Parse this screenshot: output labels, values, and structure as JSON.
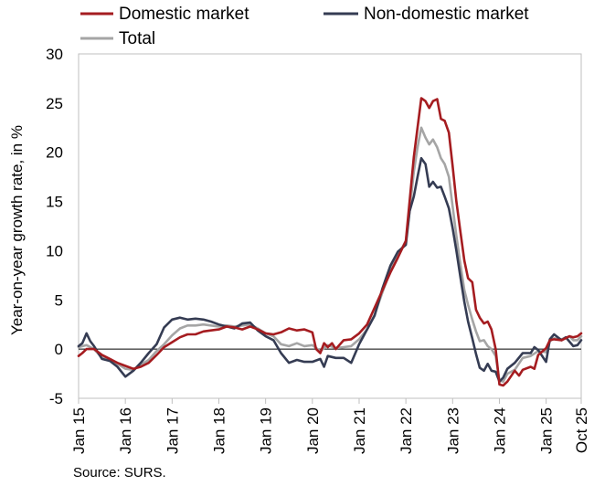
{
  "chart_data": {
    "type": "line",
    "title": "",
    "xlabel": "",
    "ylabel": "Year-on-year growth rate, in %",
    "ylim": [
      -5,
      30
    ],
    "yticks": [
      30,
      25,
      20,
      15,
      10,
      5,
      0,
      -5
    ],
    "xlim": [
      2015.0,
      2025.75
    ],
    "xticks": [
      {
        "label": "Jan 15",
        "x": 2015.0
      },
      {
        "label": "Jan 16",
        "x": 2016.0
      },
      {
        "label": "Jan 17",
        "x": 2017.0
      },
      {
        "label": "Jan 18",
        "x": 2018.0
      },
      {
        "label": "Jan 19",
        "x": 2019.0
      },
      {
        "label": "Jan 20",
        "x": 2020.0
      },
      {
        "label": "Jan 21",
        "x": 2021.0
      },
      {
        "label": "Jan 22",
        "x": 2022.0
      },
      {
        "label": "Jan 23",
        "x": 2023.0
      },
      {
        "label": "Jan 24",
        "x": 2024.0
      },
      {
        "label": "Jan 25",
        "x": 2025.0
      },
      {
        "label": "Oct 25",
        "x": 2025.75
      }
    ],
    "grid": false,
    "legend_position": "top-left",
    "series": [
      {
        "name": "Total",
        "color": "#a5a5a5",
        "points": [
          [
            2015.0,
            0.2
          ],
          [
            2015.17,
            0.4
          ],
          [
            2015.33,
            0.0
          ],
          [
            2015.5,
            -0.9
          ],
          [
            2015.67,
            -1.1
          ],
          [
            2015.83,
            -1.5
          ],
          [
            2016.0,
            -2.0
          ],
          [
            2016.17,
            -2.1
          ],
          [
            2016.33,
            -1.6
          ],
          [
            2016.5,
            -1.1
          ],
          [
            2016.67,
            -0.2
          ],
          [
            2016.83,
            0.5
          ],
          [
            2017.0,
            1.4
          ],
          [
            2017.17,
            2.1
          ],
          [
            2017.33,
            2.4
          ],
          [
            2017.5,
            2.4
          ],
          [
            2017.67,
            2.5
          ],
          [
            2017.83,
            2.4
          ],
          [
            2018.0,
            2.3
          ],
          [
            2018.17,
            2.4
          ],
          [
            2018.33,
            2.3
          ],
          [
            2018.5,
            2.4
          ],
          [
            2018.67,
            2.5
          ],
          [
            2018.83,
            2.1
          ],
          [
            2019.0,
            1.6
          ],
          [
            2019.17,
            1.3
          ],
          [
            2019.33,
            0.5
          ],
          [
            2019.5,
            0.3
          ],
          [
            2019.67,
            0.6
          ],
          [
            2019.83,
            0.3
          ],
          [
            2020.0,
            0.4
          ],
          [
            2020.17,
            -0.2
          ],
          [
            2020.33,
            0.4
          ],
          [
            2020.5,
            0.1
          ],
          [
            2020.67,
            0.2
          ],
          [
            2020.83,
            0.3
          ],
          [
            2021.0,
            1.0
          ],
          [
            2021.17,
            2.0
          ],
          [
            2021.33,
            3.5
          ],
          [
            2021.5,
            5.8
          ],
          [
            2021.67,
            8.0
          ],
          [
            2021.83,
            9.5
          ],
          [
            2022.0,
            11.0
          ],
          [
            2022.08,
            14.0
          ],
          [
            2022.17,
            18.0
          ],
          [
            2022.25,
            20.5
          ],
          [
            2022.33,
            22.5
          ],
          [
            2022.42,
            21.5
          ],
          [
            2022.5,
            20.8
          ],
          [
            2022.58,
            21.3
          ],
          [
            2022.67,
            20.5
          ],
          [
            2022.75,
            19.4
          ],
          [
            2022.83,
            18.8
          ],
          [
            2022.92,
            17.5
          ],
          [
            2023.0,
            14.5
          ],
          [
            2023.08,
            11.5
          ],
          [
            2023.17,
            8.5
          ],
          [
            2023.25,
            6.0
          ],
          [
            2023.33,
            4.5
          ],
          [
            2023.42,
            3.0
          ],
          [
            2023.5,
            1.8
          ],
          [
            2023.58,
            0.8
          ],
          [
            2023.67,
            0.9
          ],
          [
            2023.75,
            0.3
          ],
          [
            2023.83,
            0.0
          ],
          [
            2023.92,
            -0.7
          ],
          [
            2024.0,
            -3.2
          ],
          [
            2024.08,
            -3.3
          ],
          [
            2024.17,
            -2.5
          ],
          [
            2024.33,
            -2.1
          ],
          [
            2024.5,
            -0.9
          ],
          [
            2024.67,
            -0.7
          ],
          [
            2024.83,
            -0.2
          ],
          [
            2025.0,
            -0.3
          ],
          [
            2025.08,
            0.8
          ],
          [
            2025.17,
            1.1
          ],
          [
            2025.33,
            1.0
          ],
          [
            2025.5,
            1.3
          ],
          [
            2025.58,
            0.9
          ],
          [
            2025.67,
            0.9
          ],
          [
            2025.75,
            1.3
          ]
        ]
      },
      {
        "name": "Non-domestic market",
        "color": "#353c53",
        "points": [
          [
            2015.0,
            0.3
          ],
          [
            2015.08,
            0.6
          ],
          [
            2015.17,
            1.6
          ],
          [
            2015.25,
            0.8
          ],
          [
            2015.33,
            0.3
          ],
          [
            2015.5,
            -1.0
          ],
          [
            2015.67,
            -1.2
          ],
          [
            2015.83,
            -1.8
          ],
          [
            2016.0,
            -2.8
          ],
          [
            2016.17,
            -2.2
          ],
          [
            2016.33,
            -1.4
          ],
          [
            2016.5,
            -0.4
          ],
          [
            2016.67,
            0.5
          ],
          [
            2016.83,
            2.2
          ],
          [
            2017.0,
            3.0
          ],
          [
            2017.17,
            3.2
          ],
          [
            2017.33,
            3.0
          ],
          [
            2017.5,
            3.1
          ],
          [
            2017.67,
            3.0
          ],
          [
            2017.83,
            2.8
          ],
          [
            2018.0,
            2.5
          ],
          [
            2018.17,
            2.3
          ],
          [
            2018.33,
            2.1
          ],
          [
            2018.5,
            2.6
          ],
          [
            2018.67,
            2.7
          ],
          [
            2018.83,
            1.9
          ],
          [
            2019.0,
            1.3
          ],
          [
            2019.17,
            0.9
          ],
          [
            2019.33,
            -0.4
          ],
          [
            2019.5,
            -1.4
          ],
          [
            2019.67,
            -1.1
          ],
          [
            2019.83,
            -1.3
          ],
          [
            2020.0,
            -1.3
          ],
          [
            2020.17,
            -1.0
          ],
          [
            2020.25,
            -1.8
          ],
          [
            2020.33,
            -0.7
          ],
          [
            2020.5,
            -0.9
          ],
          [
            2020.67,
            -0.9
          ],
          [
            2020.83,
            -1.4
          ],
          [
            2021.0,
            0.5
          ],
          [
            2021.17,
            2.0
          ],
          [
            2021.33,
            3.4
          ],
          [
            2021.5,
            6.2
          ],
          [
            2021.67,
            8.5
          ],
          [
            2021.83,
            9.9
          ],
          [
            2022.0,
            10.6
          ],
          [
            2022.08,
            14.0
          ],
          [
            2022.17,
            15.5
          ],
          [
            2022.25,
            17.5
          ],
          [
            2022.33,
            19.4
          ],
          [
            2022.42,
            18.8
          ],
          [
            2022.5,
            16.5
          ],
          [
            2022.58,
            17.0
          ],
          [
            2022.67,
            16.4
          ],
          [
            2022.75,
            16.5
          ],
          [
            2022.83,
            15.5
          ],
          [
            2022.92,
            14.3
          ],
          [
            2023.0,
            12.3
          ],
          [
            2023.08,
            10.0
          ],
          [
            2023.17,
            7.2
          ],
          [
            2023.25,
            4.8
          ],
          [
            2023.33,
            2.8
          ],
          [
            2023.42,
            1.1
          ],
          [
            2023.5,
            -0.5
          ],
          [
            2023.58,
            -1.9
          ],
          [
            2023.67,
            -2.2
          ],
          [
            2023.75,
            -1.5
          ],
          [
            2023.83,
            -2.2
          ],
          [
            2023.92,
            -2.3
          ],
          [
            2024.0,
            -3.3
          ],
          [
            2024.08,
            -2.9
          ],
          [
            2024.17,
            -2.0
          ],
          [
            2024.33,
            -1.4
          ],
          [
            2024.5,
            -0.4
          ],
          [
            2024.67,
            -0.4
          ],
          [
            2024.75,
            0.2
          ],
          [
            2024.83,
            -0.1
          ],
          [
            2025.0,
            -1.3
          ],
          [
            2025.08,
            1.0
          ],
          [
            2025.17,
            1.5
          ],
          [
            2025.33,
            0.9
          ],
          [
            2025.42,
            1.2
          ],
          [
            2025.58,
            0.3
          ],
          [
            2025.67,
            0.4
          ],
          [
            2025.75,
            0.9
          ]
        ]
      },
      {
        "name": "Domestic market",
        "color": "#a51c20",
        "points": [
          [
            2015.0,
            -0.7
          ],
          [
            2015.08,
            -0.4
          ],
          [
            2015.17,
            0.0
          ],
          [
            2015.33,
            0.0
          ],
          [
            2015.5,
            -0.6
          ],
          [
            2015.67,
            -1.0
          ],
          [
            2015.83,
            -1.4
          ],
          [
            2016.0,
            -1.7
          ],
          [
            2016.17,
            -2.0
          ],
          [
            2016.33,
            -1.8
          ],
          [
            2016.5,
            -1.4
          ],
          [
            2016.67,
            -0.6
          ],
          [
            2016.83,
            0.2
          ],
          [
            2017.0,
            0.7
          ],
          [
            2017.17,
            1.2
          ],
          [
            2017.33,
            1.5
          ],
          [
            2017.5,
            1.5
          ],
          [
            2017.67,
            1.8
          ],
          [
            2017.83,
            1.9
          ],
          [
            2018.0,
            2.0
          ],
          [
            2018.17,
            2.3
          ],
          [
            2018.33,
            2.2
          ],
          [
            2018.5,
            2.0
          ],
          [
            2018.67,
            2.3
          ],
          [
            2018.83,
            2.0
          ],
          [
            2019.0,
            1.6
          ],
          [
            2019.17,
            1.5
          ],
          [
            2019.33,
            1.7
          ],
          [
            2019.5,
            2.1
          ],
          [
            2019.67,
            1.9
          ],
          [
            2019.83,
            2.0
          ],
          [
            2020.0,
            1.7
          ],
          [
            2020.08,
            0.0
          ],
          [
            2020.17,
            -0.4
          ],
          [
            2020.25,
            0.6
          ],
          [
            2020.33,
            0.2
          ],
          [
            2020.42,
            0.6
          ],
          [
            2020.5,
            0.0
          ],
          [
            2020.67,
            0.9
          ],
          [
            2020.83,
            1.0
          ],
          [
            2021.0,
            1.6
          ],
          [
            2021.17,
            2.5
          ],
          [
            2021.33,
            4.2
          ],
          [
            2021.5,
            6.0
          ],
          [
            2021.67,
            7.8
          ],
          [
            2021.83,
            9.3
          ],
          [
            2022.0,
            11.0
          ],
          [
            2022.08,
            15.0
          ],
          [
            2022.17,
            19.5
          ],
          [
            2022.25,
            22.5
          ],
          [
            2022.33,
            25.5
          ],
          [
            2022.42,
            25.2
          ],
          [
            2022.5,
            24.5
          ],
          [
            2022.58,
            25.2
          ],
          [
            2022.67,
            25.4
          ],
          [
            2022.75,
            23.4
          ],
          [
            2022.83,
            23.2
          ],
          [
            2022.92,
            22.0
          ],
          [
            2023.0,
            18.6
          ],
          [
            2023.08,
            15.0
          ],
          [
            2023.17,
            11.8
          ],
          [
            2023.25,
            9.0
          ],
          [
            2023.33,
            7.2
          ],
          [
            2023.42,
            6.8
          ],
          [
            2023.5,
            4.0
          ],
          [
            2023.58,
            3.2
          ],
          [
            2023.67,
            2.6
          ],
          [
            2023.75,
            2.8
          ],
          [
            2023.83,
            2.0
          ],
          [
            2023.92,
            0.0
          ],
          [
            2024.0,
            -3.6
          ],
          [
            2024.08,
            -3.7
          ],
          [
            2024.17,
            -3.3
          ],
          [
            2024.33,
            -2.2
          ],
          [
            2024.42,
            -2.7
          ],
          [
            2024.5,
            -2.1
          ],
          [
            2024.67,
            -1.8
          ],
          [
            2024.75,
            -2.0
          ],
          [
            2024.83,
            -0.6
          ],
          [
            2025.0,
            0.1
          ],
          [
            2025.08,
            0.9
          ],
          [
            2025.17,
            1.0
          ],
          [
            2025.33,
            0.9
          ],
          [
            2025.5,
            1.3
          ],
          [
            2025.58,
            1.2
          ],
          [
            2025.67,
            1.3
          ],
          [
            2025.75,
            1.6
          ]
        ]
      }
    ],
    "legend": [
      {
        "name": "Domestic market",
        "color": "#a51c20"
      },
      {
        "name": "Non-domestic market",
        "color": "#353c53"
      },
      {
        "name": "Total",
        "color": "#a5a5a5"
      }
    ]
  },
  "source": "Source: SURS."
}
